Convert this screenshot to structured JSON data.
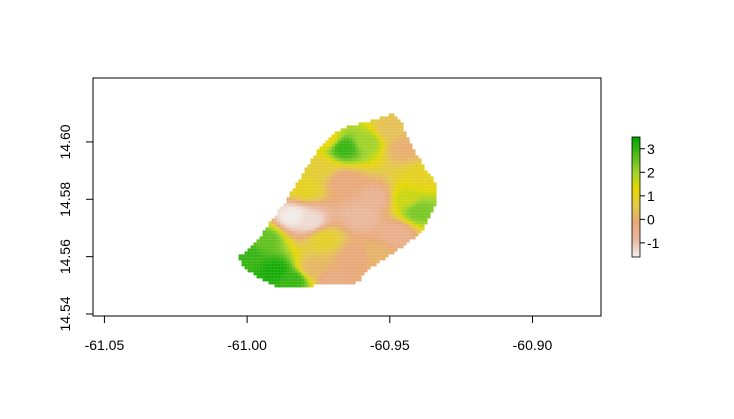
{
  "chart_data": {
    "type": "heatmap",
    "title": "",
    "xlabel": "",
    "ylabel": "",
    "xlim": [
      -61.054,
      -60.876
    ],
    "ylim": [
      14.5393,
      14.6223
    ],
    "x_ticks": [
      {
        "value": -61.05,
        "label": "-61.05"
      },
      {
        "value": -61.0,
        "label": "-61.00"
      },
      {
        "value": -60.95,
        "label": "-60.95"
      },
      {
        "value": -60.9,
        "label": "-60.90"
      }
    ],
    "y_ticks": [
      {
        "value": 14.54,
        "label": "14.54"
      },
      {
        "value": 14.56,
        "label": "14.56"
      },
      {
        "value": 14.58,
        "label": "14.58"
      },
      {
        "value": 14.6,
        "label": "14.60"
      }
    ],
    "grid": false,
    "legend": {
      "placement": "right",
      "range": [
        -1.6,
        3.5
      ],
      "ticks": [
        {
          "value": 3,
          "label": "3"
        },
        {
          "value": 2,
          "label": "2"
        },
        {
          "value": 1,
          "label": "1"
        },
        {
          "value": 0,
          "label": "0"
        },
        {
          "value": -1,
          "label": "-1"
        }
      ],
      "colormap": [
        "#f2f2f2",
        "#eab9a0",
        "#e8a878",
        "#e3c84a",
        "#e6d800",
        "#9dd22e",
        "#4fbb1a",
        "#00a600"
      ]
    },
    "raster_extent": {
      "x": [
        -61.003,
        -60.934
      ],
      "y": [
        14.549,
        14.611
      ]
    },
    "outline": [
      [
        -61.003,
        14.56
      ],
      [
        -61.0,
        14.562
      ],
      [
        -60.996,
        14.566
      ],
      [
        -60.992,
        14.572
      ],
      [
        -60.986,
        14.58
      ],
      [
        -60.981,
        14.588
      ],
      [
        -60.976,
        14.596
      ],
      [
        -60.971,
        14.602
      ],
      [
        -60.966,
        14.605
      ],
      [
        -60.958,
        14.607
      ],
      [
        -60.952,
        14.609
      ],
      [
        -60.949,
        14.61
      ],
      [
        -60.946,
        14.607
      ],
      [
        -60.943,
        14.6
      ],
      [
        -60.94,
        14.595
      ],
      [
        -60.937,
        14.59
      ],
      [
        -60.934,
        14.586
      ],
      [
        -60.934,
        14.578
      ],
      [
        -60.938,
        14.57
      ],
      [
        -60.942,
        14.566
      ],
      [
        -60.946,
        14.563
      ],
      [
        -60.952,
        14.559
      ],
      [
        -60.957,
        14.556
      ],
      [
        -60.961,
        14.551
      ],
      [
        -60.968,
        14.55
      ],
      [
        -60.975,
        14.55
      ],
      [
        -60.982,
        14.549
      ],
      [
        -60.988,
        14.549
      ],
      [
        -60.993,
        14.551
      ],
      [
        -60.998,
        14.554
      ],
      [
        -61.002,
        14.557
      ]
    ],
    "value_anchors": [
      {
        "x": -61.0,
        "y": 14.561,
        "v": 3.0
      },
      {
        "x": -60.994,
        "y": 14.566,
        "v": 2.6
      },
      {
        "x": -60.99,
        "y": 14.555,
        "v": 3.3
      },
      {
        "x": -60.984,
        "y": 14.552,
        "v": 3.0
      },
      {
        "x": -60.977,
        "y": 14.556,
        "v": 0.2
      },
      {
        "x": -60.97,
        "y": 14.552,
        "v": -0.3
      },
      {
        "x": -60.973,
        "y": 14.566,
        "v": 0.9
      },
      {
        "x": -60.984,
        "y": 14.574,
        "v": -1.5
      },
      {
        "x": -60.978,
        "y": 14.572,
        "v": -1.3
      },
      {
        "x": -60.96,
        "y": 14.574,
        "v": -0.8
      },
      {
        "x": -60.955,
        "y": 14.58,
        "v": -0.6
      },
      {
        "x": -60.948,
        "y": 14.568,
        "v": -0.5
      },
      {
        "x": -60.944,
        "y": 14.58,
        "v": 1.6
      },
      {
        "x": -60.94,
        "y": 14.576,
        "v": 2.4
      },
      {
        "x": -60.938,
        "y": 14.588,
        "v": 1.0
      },
      {
        "x": -60.945,
        "y": 14.598,
        "v": 0.0
      },
      {
        "x": -60.95,
        "y": 14.604,
        "v": 0.4
      },
      {
        "x": -60.958,
        "y": 14.6,
        "v": 2.0
      },
      {
        "x": -60.966,
        "y": 14.598,
        "v": 3.0
      },
      {
        "x": -60.972,
        "y": 14.601,
        "v": 1.2
      },
      {
        "x": -60.975,
        "y": 14.591,
        "v": 0.8
      },
      {
        "x": -60.98,
        "y": 14.584,
        "v": 1.0
      },
      {
        "x": -60.966,
        "y": 14.586,
        "v": -0.2
      },
      {
        "x": -60.962,
        "y": 14.56,
        "v": -0.2
      },
      {
        "x": -60.955,
        "y": 14.561,
        "v": 0.1
      }
    ]
  }
}
